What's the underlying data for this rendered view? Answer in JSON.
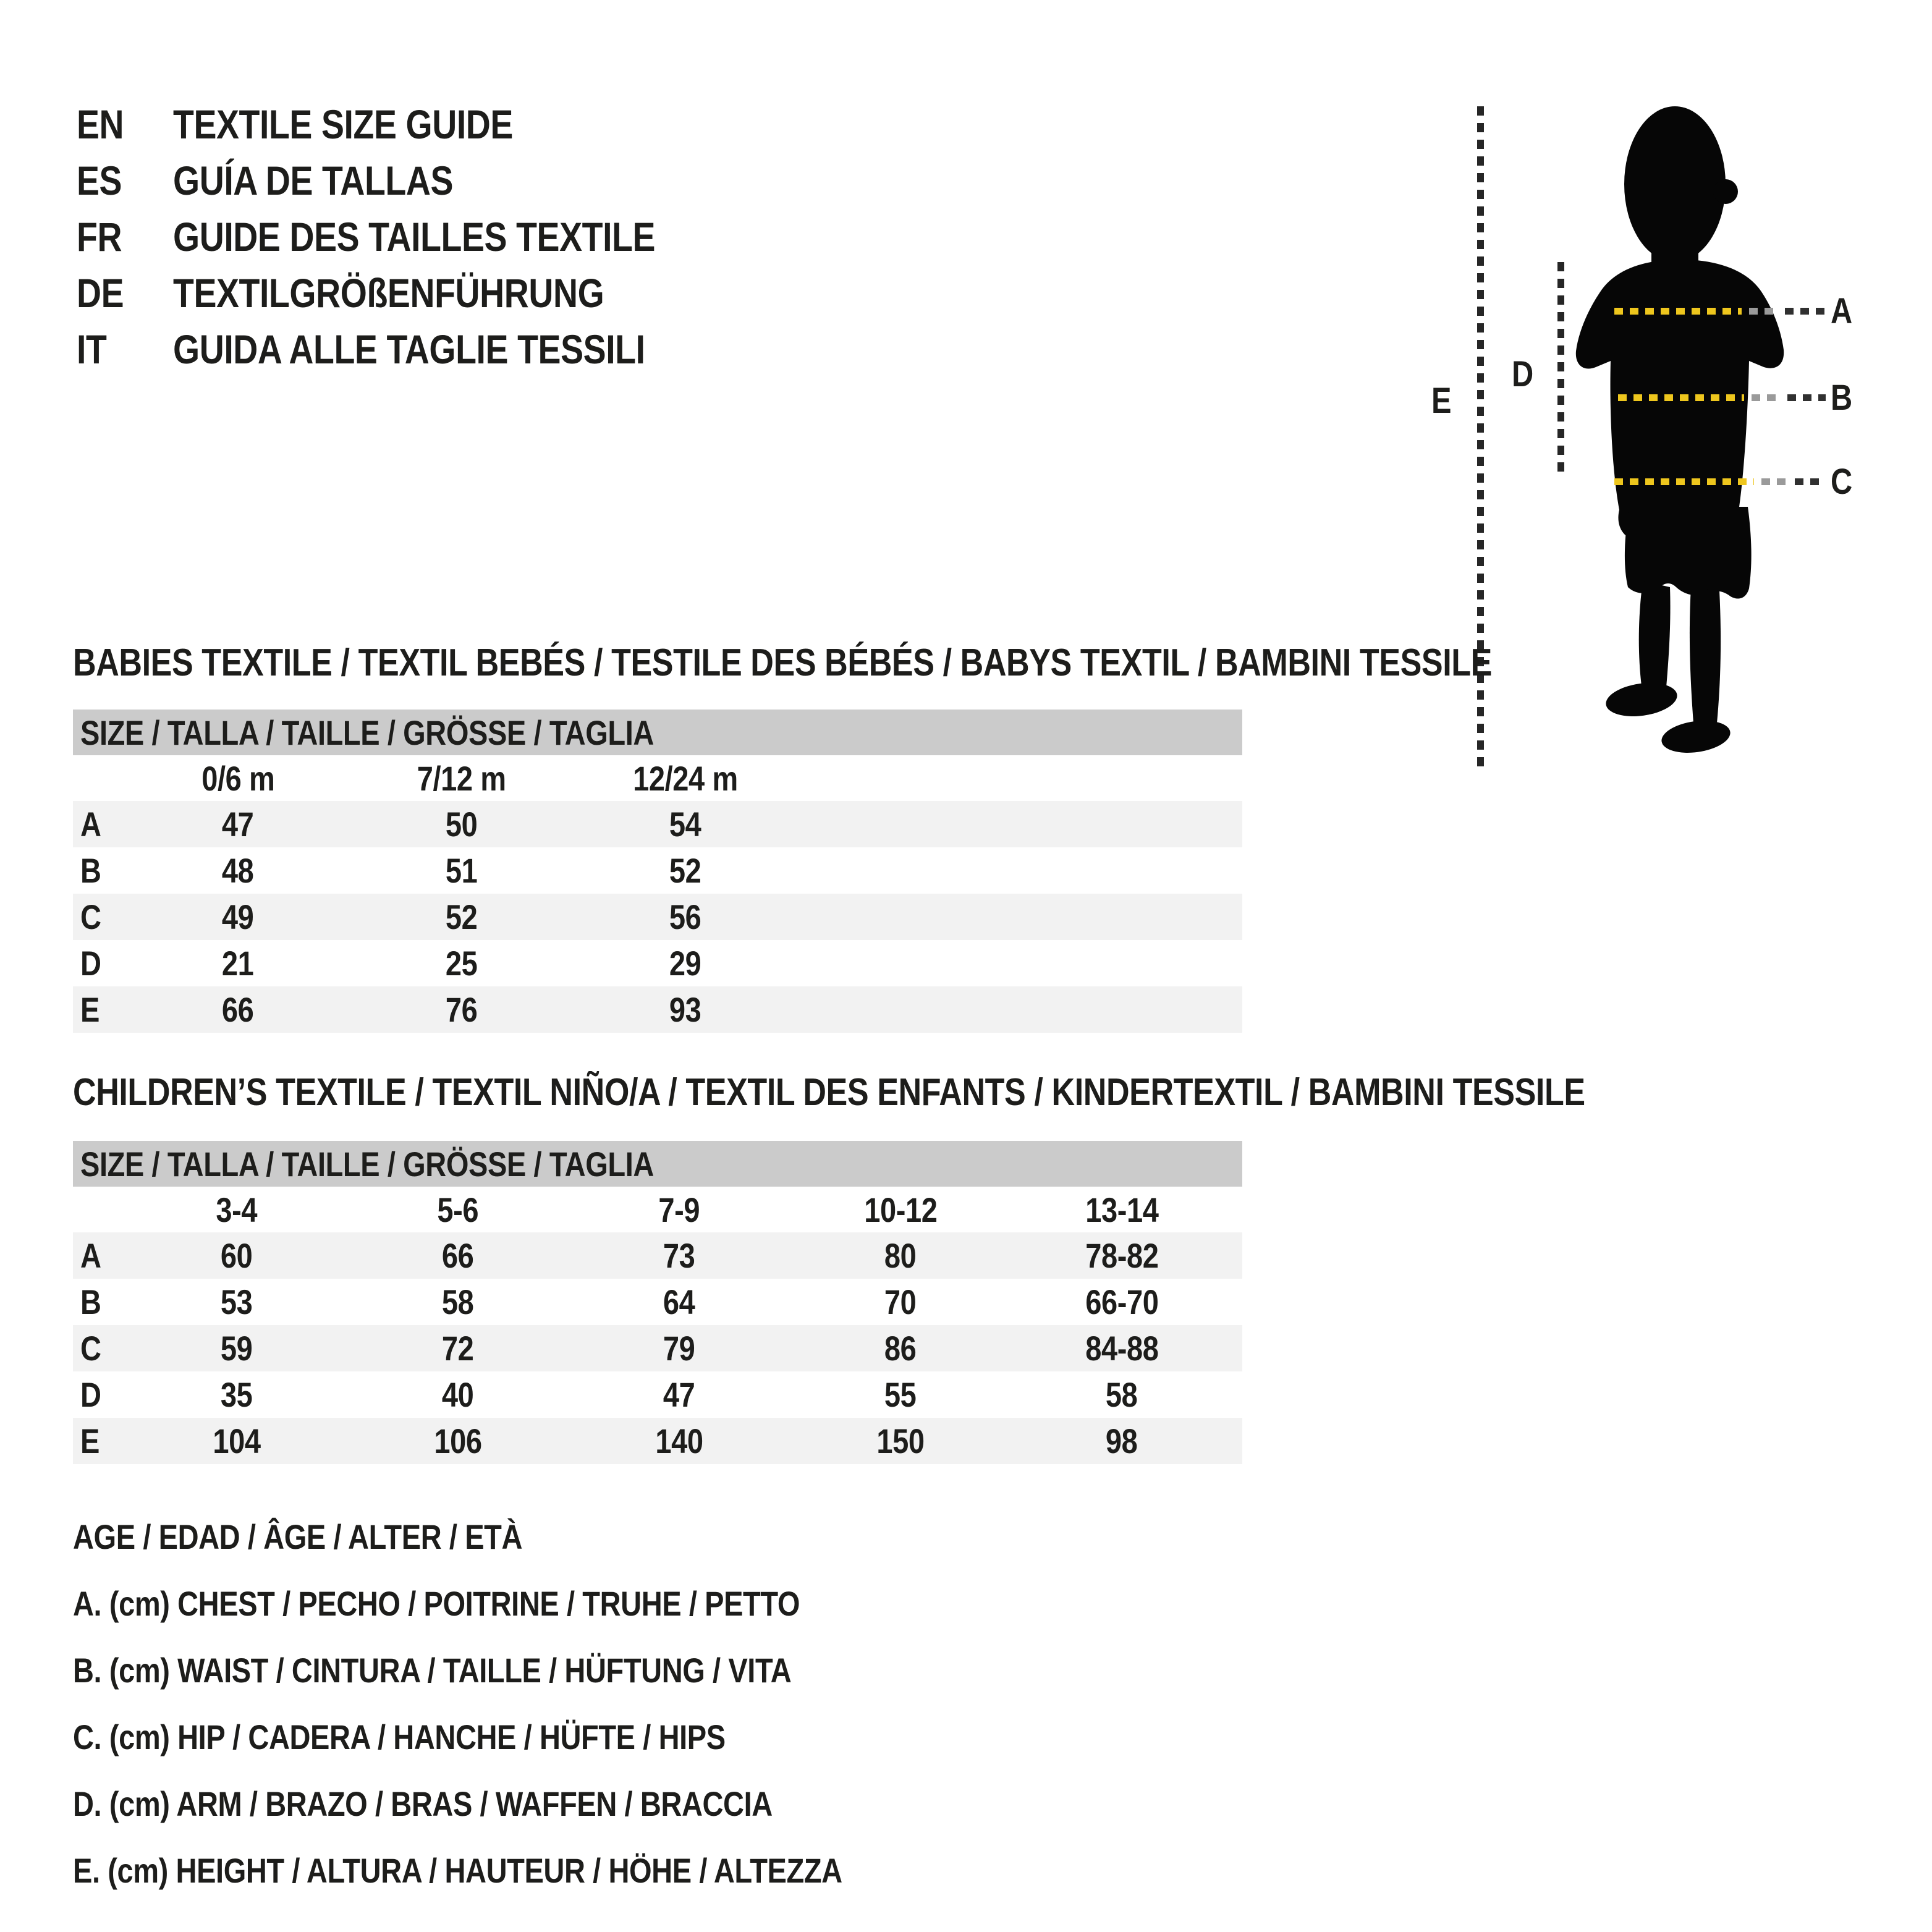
{
  "languages": [
    {
      "code": "EN",
      "title": "TEXTILE SIZE GUIDE"
    },
    {
      "code": "ES",
      "title": "GUÍA DE TALLAS"
    },
    {
      "code": "FR",
      "title": "GUIDE DES TAILLES TEXTILE"
    },
    {
      "code": "DE",
      "title": "TEXTILGRÖßENFÜHRUNG"
    },
    {
      "code": "IT",
      "title": "GUIDA ALLE TAGLIE TESSILI"
    }
  ],
  "figure": {
    "labels": {
      "a": "A",
      "b": "B",
      "c": "C",
      "d": "D",
      "e": "E"
    },
    "colors": {
      "silhouette": "#060606",
      "dash_yellow": "#eec61d",
      "dash_dark": "#303030",
      "dash_vertical": "#262626"
    }
  },
  "babies": {
    "title": "BABIES TEXTILE / TEXTIL BEBÉS / TESTILE DES BÉBÉS / BABYS TEXTIL / BAMBINI TESSILE",
    "size_header": "SIZE / TALLA / TAILLE / GRÖSSE / TAGLIA",
    "col_headers": [
      "0/6 m",
      "7/12 m",
      "12/24 m"
    ],
    "rows": [
      {
        "label": "A",
        "values": [
          "47",
          "50",
          "54"
        ]
      },
      {
        "label": "B",
        "values": [
          "48",
          "51",
          "52"
        ]
      },
      {
        "label": "C",
        "values": [
          "49",
          "52",
          "56"
        ]
      },
      {
        "label": "D",
        "values": [
          "21",
          "25",
          "29"
        ]
      },
      {
        "label": "E",
        "values": [
          "66",
          "76",
          "93"
        ]
      }
    ]
  },
  "children": {
    "title": "CHILDREN’S TEXTILE / TEXTIL NIÑO/A / TEXTIL DES ENFANTS / KINDERTEXTIL / BAMBINI TESSILE",
    "size_header": "SIZE / TALLA / TAILLE / GRÖSSE / TAGLIA",
    "col_headers": [
      "3-4",
      "5-6",
      "7-9",
      "10-12",
      "13-14"
    ],
    "rows": [
      {
        "label": "A",
        "values": [
          "60",
          "66",
          "73",
          "80",
          "78-82"
        ]
      },
      {
        "label": "B",
        "values": [
          "53",
          "58",
          "64",
          "70",
          "66-70"
        ]
      },
      {
        "label": "C",
        "values": [
          "59",
          "72",
          "79",
          "86",
          "84-88"
        ]
      },
      {
        "label": "D",
        "values": [
          "35",
          "40",
          "47",
          "55",
          "58"
        ]
      },
      {
        "label": "E",
        "values": [
          "104",
          "106",
          "140",
          "150",
          "98"
        ]
      }
    ]
  },
  "legend": {
    "lines": [
      "AGE / EDAD / ÂGE / ALTER / ETÀ",
      "A. (cm) CHEST / PECHO / POITRINE / TRUHE / PETTO",
      "B. (cm) WAIST / CINTURA / TAILLE / HÜFTUNG / VITA",
      "C. (cm) HIP / CADERA / HANCHE / HÜFTE / HIPS",
      "D. (cm) ARM / BRAZO / BRAS / WAFFEN / BRACCIA",
      "E. (cm) HEIGHT / ALTURA / HAUTEUR / HÖHE / ALTEZZA"
    ]
  },
  "colors": {
    "table_header_bg": "#cbcbcb",
    "row_stripe": "#f2f2f2",
    "text": "#1d1d1b",
    "background": "#ffffff"
  }
}
